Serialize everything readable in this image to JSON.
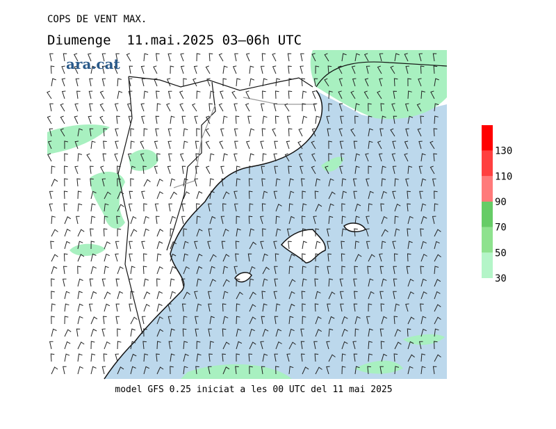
{
  "header": {
    "title": "COPS DE VENT MAX.",
    "subtitle": "Diumenge  11.mai.2025 03–06h UTC",
    "logo": "ara.cat"
  },
  "footer": "model GFS 0.25 iniciat a les 00 UTC del 11 mai 2025",
  "colorbar": {
    "lim": [
      30,
      150
    ],
    "ticks": [
      30,
      50,
      70,
      90,
      110,
      130
    ],
    "colors": [
      "#b4f5c8",
      "#8ee28e",
      "#66cc66",
      "#ff7a7a",
      "#ff4040",
      "#ff0000"
    ]
  }
}
